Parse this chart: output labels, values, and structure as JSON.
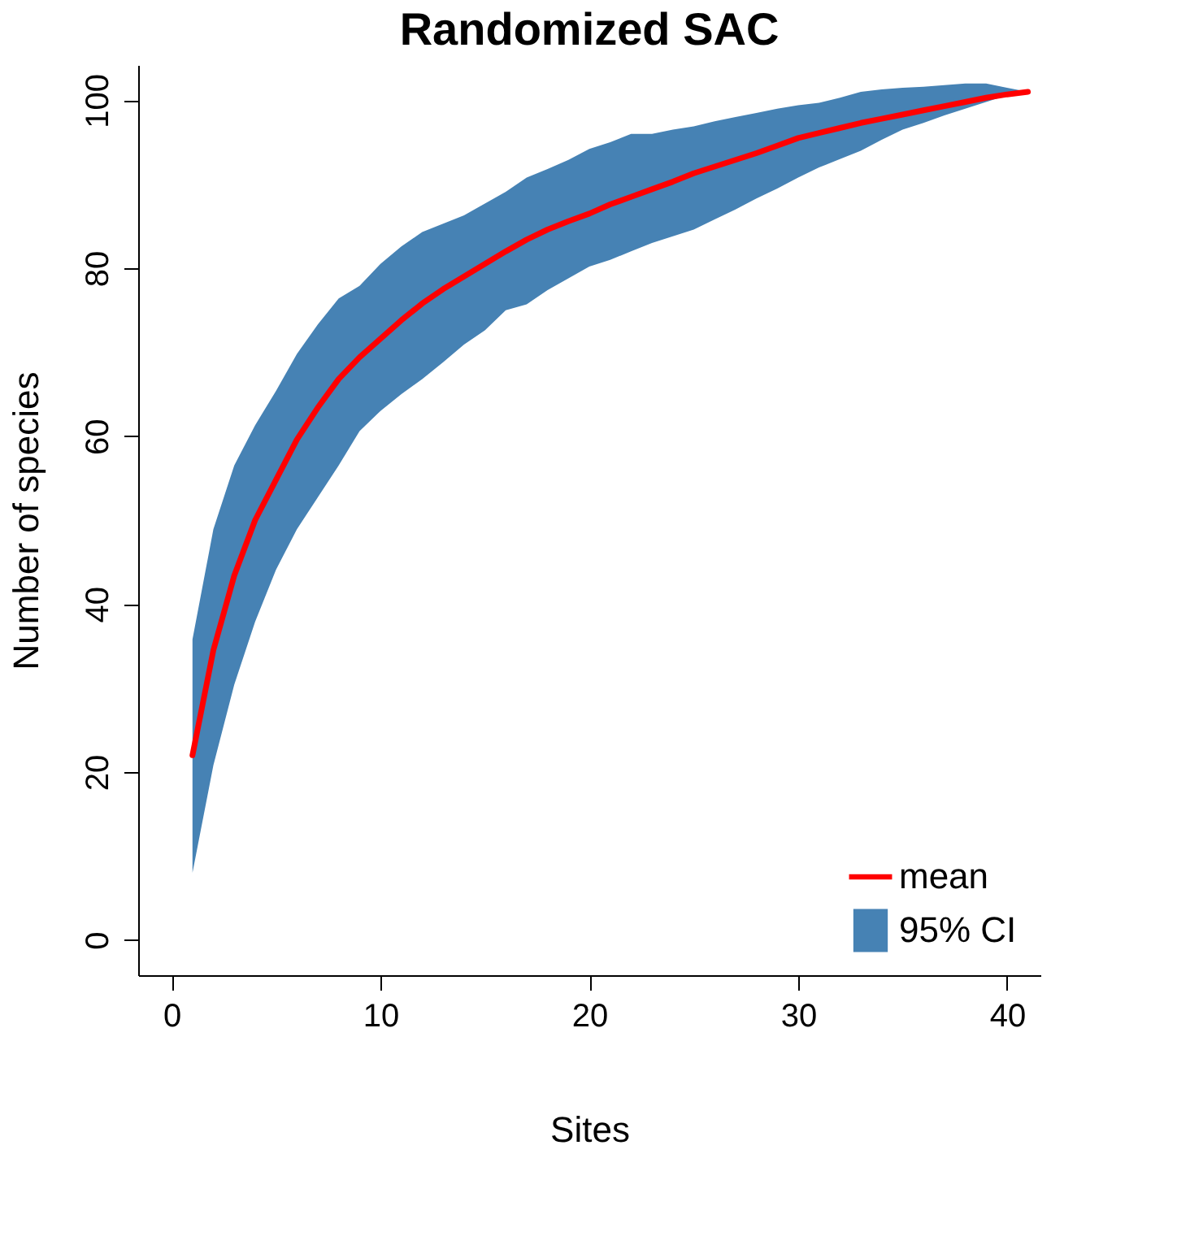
{
  "chart_data": {
    "type": "line",
    "title": "Randomized SAC",
    "xlabel": "Sites",
    "ylabel": "Number of species",
    "x": [
      1,
      2,
      3,
      4,
      5,
      6,
      7,
      8,
      9,
      10,
      11,
      12,
      13,
      14,
      15,
      16,
      17,
      18,
      19,
      20,
      21,
      22,
      23,
      24,
      25,
      26,
      27,
      28,
      29,
      30,
      31,
      32,
      33,
      34,
      35,
      36,
      37,
      38,
      39,
      40,
      41
    ],
    "series": [
      {
        "name": "mean",
        "color": "#ff0000",
        "values": [
          22,
          34.5,
          43.4,
          50,
          54.8,
          59.6,
          63.4,
          66.8,
          69.4,
          71.6,
          73.8,
          75.8,
          77.5,
          79,
          80.5,
          82,
          83.4,
          84.6,
          85.6,
          86.5,
          87.6,
          88.5,
          89.4,
          90.3,
          91.3,
          92.1,
          92.9,
          93.7,
          94.6,
          95.5,
          96.1,
          96.7,
          97.3,
          97.8,
          98.3,
          98.8,
          99.3,
          99.8,
          100.3,
          100.7,
          101
        ],
        "lower": [
          8,
          20.8,
          30.4,
          37.9,
          44.1,
          48.9,
          52.7,
          56.5,
          60.6,
          63,
          65,
          66.8,
          68.8,
          70.9,
          72.6,
          75,
          75.7,
          77.4,
          78.8,
          80.2,
          81,
          82,
          83,
          83.8,
          84.6,
          85.8,
          87,
          88.3,
          89.5,
          90.8,
          92,
          93,
          94,
          95.3,
          96.5,
          97.3,
          98.2,
          99,
          99.8,
          100.6,
          101
        ],
        "upper": [
          35.8,
          48.9,
          56.5,
          61.3,
          65.4,
          69.8,
          73.3,
          76.4,
          77.9,
          80.5,
          82.6,
          84.3,
          85.3,
          86.3,
          87.7,
          89.1,
          90.8,
          91.8,
          92.9,
          94.2,
          95,
          96,
          96,
          96.5,
          96.9,
          97.5,
          98,
          98.5,
          99,
          99.4,
          99.7,
          100.3,
          101,
          101.3,
          101.5,
          101.6,
          101.8,
          102,
          102,
          101.5,
          101
        ]
      },
      {
        "name": "95% CI",
        "type": "area",
        "color": "#4682b4",
        "values": [
          null,
          null,
          null,
          null,
          null,
          null,
          null,
          null,
          null,
          null,
          null,
          null,
          null,
          null,
          null,
          null,
          null,
          null,
          null,
          null,
          null,
          null,
          null,
          null,
          null,
          null,
          null,
          null,
          null,
          null,
          null,
          null,
          null,
          null,
          null,
          null,
          null,
          null,
          null,
          null,
          null
        ]
      }
    ],
    "xlim": [
      -1.6,
      41.6
    ],
    "xticks": [
      0,
      10,
      20,
      30,
      40
    ],
    "ylim": [
      -4.2,
      104.2
    ],
    "yticks": [
      0,
      20,
      40,
      60,
      80,
      100
    ],
    "grid": false,
    "legend": "bottom right"
  }
}
